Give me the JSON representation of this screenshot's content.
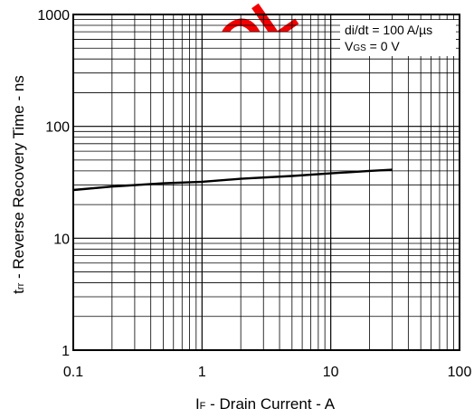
{
  "chart_data": {
    "type": "line",
    "x_scale": "log",
    "y_scale": "log",
    "xlim": [
      0.1,
      100
    ],
    "ylim": [
      1,
      1000
    ],
    "grid": true,
    "x_ticks": [
      "0.1",
      "1",
      "10",
      "100"
    ],
    "y_ticks": [
      "1",
      "10",
      "100",
      "1000"
    ],
    "xlabel": {
      "main": "I",
      "sub": "F",
      "rest": " - Drain Current - A"
    },
    "ylabel": {
      "main": "t",
      "sub": "rr",
      "rest": " - Reverse Recovery Time - ns"
    },
    "annotations": {
      "line1": "di/dt = 100 A/µs",
      "line2": {
        "main": "V",
        "sub": "GS",
        "rest": " = 0 V"
      }
    },
    "series": [
      {
        "x": [
          0.1,
          0.2,
          0.5,
          1,
          2,
          5,
          10,
          20,
          30
        ],
        "y": [
          27,
          29,
          31,
          32,
          34,
          36,
          38,
          40,
          41
        ]
      }
    ],
    "colors": {
      "line": "#000000",
      "grid": "#000000",
      "watermark": "#f20000"
    },
    "watermark": "EOL"
  }
}
